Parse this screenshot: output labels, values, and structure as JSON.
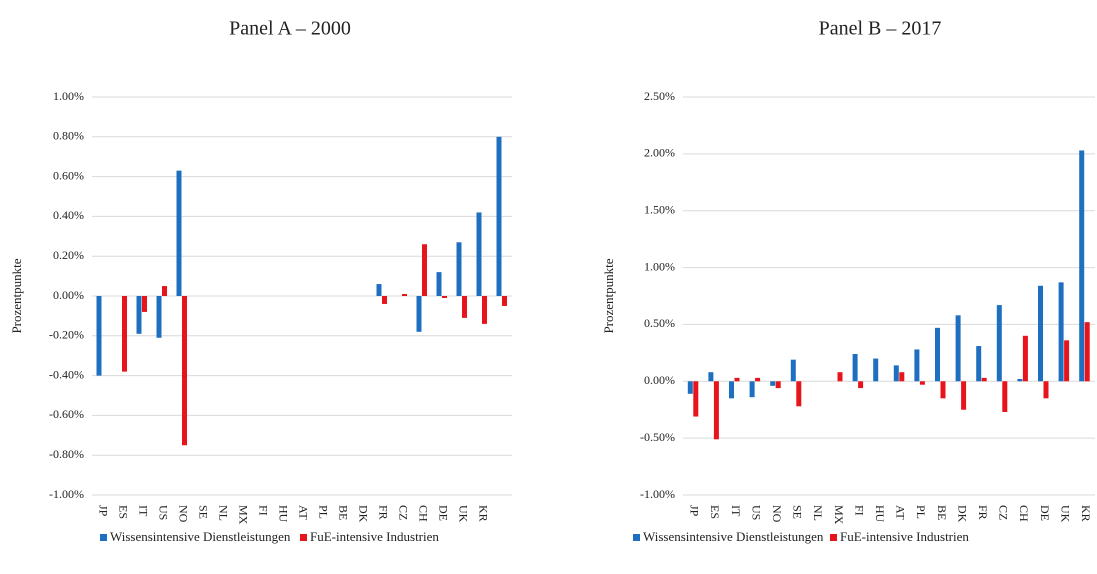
{
  "chart_data": [
    {
      "type": "bar",
      "title": "Panel A – 2000",
      "ylabel": "Prozentpunkte",
      "categories": [
        "JP",
        "ES",
        "IT",
        "US",
        "NO",
        "SE",
        "NL",
        "MX",
        "FI",
        "HU",
        "AT",
        "PL",
        "BE",
        "DK",
        "FR",
        "CZ",
        "CH",
        "DE",
        "UK",
        "KR",
        null
      ],
      "series": [
        {
          "name": "Wissensintensive Dienstleistungen",
          "color": "#1f6fc0",
          "values": [
            -0.4,
            0,
            -0.19,
            -0.21,
            0.63,
            0,
            0,
            0,
            0,
            0,
            0,
            0,
            0,
            0,
            0.06,
            0,
            -0.18,
            0.12,
            0.27,
            0.42,
            0.8
          ]
        },
        {
          "name": "FuE-intensive Industrien",
          "color": "#e8141b",
          "values": [
            0,
            -0.38,
            -0.08,
            0.05,
            -0.75,
            0,
            0,
            0,
            0,
            0,
            0,
            0,
            0,
            0,
            -0.04,
            0.01,
            0.26,
            -0.01,
            -0.11,
            -0.14,
            -0.05
          ]
        }
      ],
      "ylim": [
        -1,
        1
      ],
      "yticks": [
        {
          "value": -1,
          "label": "-1.00%"
        },
        {
          "value": -0.8,
          "label": "-0.80%"
        },
        {
          "value": -0.6,
          "label": "-0.60%"
        },
        {
          "value": -0.4,
          "label": "-0.40%"
        },
        {
          "value": -0.2,
          "label": "-0.20%"
        },
        {
          "value": 0,
          "label": "0.00%"
        },
        {
          "value": 0.2,
          "label": "0.20%"
        },
        {
          "value": 0.4,
          "label": "0.40%"
        },
        {
          "value": 0.6,
          "label": "0.60%"
        },
        {
          "value": 0.8,
          "label": "0.80%"
        },
        {
          "value": 1,
          "label": "1.00%"
        }
      ],
      "grid": true,
      "legend": "bottom"
    },
    {
      "type": "bar",
      "title": "Panel B – 2017",
      "ylabel": "Prozentpunkte",
      "categories": [
        "JP",
        "ES",
        "IT",
        "US",
        "NO",
        "SE",
        "NL",
        "MX",
        "FI",
        "HU",
        "AT",
        "PL",
        "BE",
        "DK",
        "FR",
        "CZ",
        "CH",
        "DE",
        "UK",
        "KR"
      ],
      "series": [
        {
          "name": "Wissensintensive Dienstleistungen",
          "color": "#1f6fc0",
          "values": [
            -0.11,
            0.08,
            -0.15,
            -0.14,
            -0.04,
            0.19,
            0,
            0,
            0.24,
            0.2,
            0.14,
            0.28,
            0.47,
            0.58,
            0.31,
            0.67,
            0.02,
            0.84,
            0.87,
            2.03
          ]
        },
        {
          "name": "FuE-intensive Industrien",
          "color": "#e8141b",
          "values": [
            -0.31,
            -0.51,
            0.03,
            0.03,
            -0.06,
            -0.22,
            0,
            0.08,
            -0.06,
            0,
            0.08,
            -0.03,
            -0.15,
            -0.25,
            0.03,
            -0.27,
            0.4,
            -0.15,
            0.36,
            0.52
          ]
        }
      ],
      "ylim": [
        -1,
        2.5
      ],
      "yticks": [
        {
          "value": -1,
          "label": "-1.00%"
        },
        {
          "value": -0.5,
          "label": "-0.50%"
        },
        {
          "value": 0,
          "label": "0.00%"
        },
        {
          "value": 0.5,
          "label": "0.50%"
        },
        {
          "value": 1,
          "label": "1.00%"
        },
        {
          "value": 1.5,
          "label": "1.50%"
        },
        {
          "value": 2,
          "label": "2.00%"
        },
        {
          "value": 2.5,
          "label": "2.50%"
        }
      ],
      "grid": true,
      "legend": "bottom"
    }
  ]
}
